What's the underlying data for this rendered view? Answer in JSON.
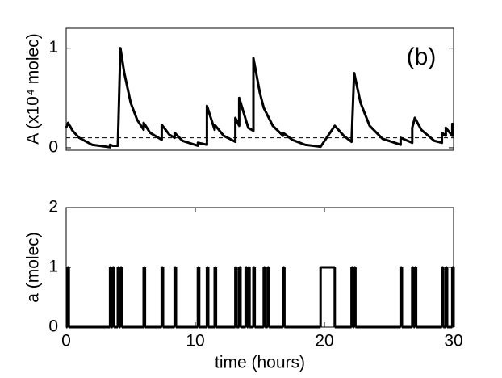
{
  "chart_data": [
    {
      "type": "line",
      "y_label": "A (x10⁴ molec)",
      "annotation": "(b)",
      "x": [
        0,
        0.15,
        0.5,
        1,
        2,
        3.4,
        3.4,
        3.6,
        4.0,
        4.2,
        4.5,
        5,
        5.5,
        6.0,
        6.0,
        6.5,
        7.4,
        7.4,
        8.0,
        8.4,
        8.4,
        9,
        10.2,
        10.2,
        10.9,
        10.9,
        11.5,
        11.5,
        12.2,
        13.1,
        13.1,
        13.4,
        13.4,
        14.1,
        14.5,
        14.5,
        15,
        15.3,
        16,
        16.8,
        16.8,
        17.5,
        18.5,
        19.7,
        20.8,
        21.5,
        22.1,
        22.3,
        22.8,
        23.5,
        24.5,
        25.9,
        25.9,
        26.8,
        26.8,
        27.0,
        27.5,
        28.5,
        29.1,
        29.1,
        29.4,
        29.4,
        29.9,
        29.9,
        30
      ],
      "series": [
        {
          "color": "#000000",
          "values": [
            0.2,
            0.25,
            0.17,
            0.1,
            0.03,
            0.005,
            0.03,
            0.02,
            0.02,
            1.0,
            0.75,
            0.45,
            0.28,
            0.18,
            0.25,
            0.15,
            0.08,
            0.23,
            0.13,
            0.1,
            0.15,
            0.07,
            0.02,
            0.05,
            0.03,
            0.42,
            0.18,
            0.23,
            0.12,
            0.06,
            0.3,
            0.22,
            0.5,
            0.2,
            0.17,
            0.9,
            0.55,
            0.4,
            0.22,
            0.12,
            0.15,
            0.08,
            0.03,
            0.01,
            0.22,
            0.12,
            0.06,
            0.75,
            0.45,
            0.22,
            0.09,
            0.03,
            0.1,
            0.05,
            0.2,
            0.3,
            0.18,
            0.07,
            0.05,
            0.15,
            0.12,
            0.2,
            0.12,
            0.24,
            0.22
          ]
        }
      ],
      "reference_line": 0.1,
      "xlim": [
        0,
        30
      ],
      "ylim": [
        -0.025,
        1.2
      ],
      "yticks": [
        0,
        1
      ]
    },
    {
      "type": "step",
      "y_label": "a (molec)",
      "x_label": "time (hours)",
      "x": [
        0,
        0.1,
        0.2,
        3.4,
        3.5,
        3.6,
        3.7,
        4.0,
        4.1,
        4.2,
        4.3,
        6.0,
        6.1,
        7.4,
        7.5,
        8.4,
        8.5,
        10.2,
        10.3,
        10.9,
        11.0,
        11.5,
        11.6,
        13.1,
        13.2,
        13.4,
        13.5,
        13.9,
        14.0,
        14.1,
        14.2,
        14.5,
        14.6,
        15.3,
        15.4,
        15.6,
        15.7,
        16.8,
        16.9,
        19.7,
        20.8,
        22.1,
        22.2,
        22.3,
        22.4,
        25.9,
        26.0,
        26.8,
        26.9,
        27.0,
        27.1,
        29.1,
        29.2,
        29.4,
        29.5,
        29.9,
        30
      ],
      "values": [
        0,
        1,
        0,
        1,
        0,
        1,
        0,
        1,
        0,
        1,
        0,
        1,
        0,
        1,
        0,
        1,
        0,
        1,
        0,
        1,
        0,
        1,
        0,
        1,
        0,
        1,
        0,
        1,
        0,
        1,
        0,
        1,
        0,
        1,
        0,
        1,
        0,
        1,
        0,
        1,
        0,
        1,
        0,
        1,
        0,
        1,
        0,
        1,
        0,
        1,
        0,
        1,
        0,
        1,
        0,
        1,
        0
      ],
      "color": "#000000",
      "xlim": [
        0,
        30
      ],
      "ylim": [
        0,
        2
      ],
      "xticks": [
        0,
        10,
        20,
        30
      ],
      "yticks": [
        0,
        1,
        2
      ]
    }
  ]
}
